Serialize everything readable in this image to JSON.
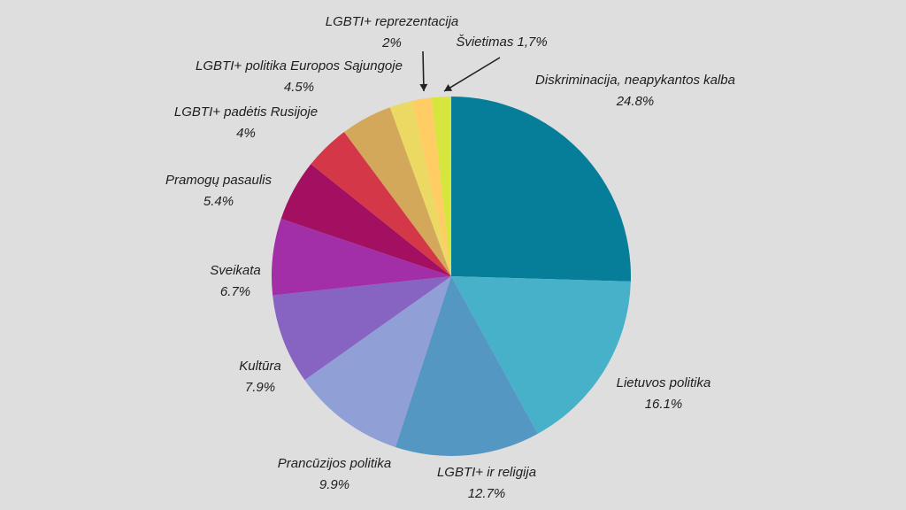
{
  "chart_data": {
    "type": "pie",
    "start_angle": "12 o'clock",
    "direction": "clockwise",
    "slices": [
      {
        "label": "Diskriminacija, neapykantos kalba",
        "value_label": "24.8%",
        "value": 24.8,
        "color": "#077e99"
      },
      {
        "label": "Lietuvos politika",
        "value_label": "16.1%",
        "value": 16.1,
        "color": "#47b1c9"
      },
      {
        "label": "LGBTI+ ir religija",
        "value_label": "12.7%",
        "value": 12.7,
        "color": "#5597c3"
      },
      {
        "label": "Prancūzijos politika",
        "value_label": "9.9%",
        "value": 9.9,
        "color": "#919fd7"
      },
      {
        "label": "Kultūra",
        "value_label": "7.9%",
        "value": 7.9,
        "color": "#8764c2"
      },
      {
        "label": "Sveikata",
        "value_label": "6.7%",
        "value": 6.7,
        "color": "#a32fa8"
      },
      {
        "label": "Pramogų pasaulis",
        "value_label": "5.4%",
        "value": 5.4,
        "color": "#a30f61"
      },
      {
        "label": "LGBTI+ padėtis Rusijoje",
        "value_label": "4%",
        "value": 4,
        "color": "#d43848"
      },
      {
        "label": "LGBTI+ politika Europos Sąjungoje",
        "value_label": "4.5%",
        "value": 4.5,
        "color": "#d3a85a"
      },
      {
        "label": "LGBTI+ reprezentacija",
        "value_label": "2%",
        "value": 2,
        "color": "#ecd964"
      },
      {
        "label": "Švietimas",
        "value_label": "1,7%",
        "value": 1.7,
        "color": "#ffcd63"
      },
      {
        "label": "",
        "value_label": "",
        "value": 1.7,
        "color": "#d7e63f"
      }
    ]
  }
}
